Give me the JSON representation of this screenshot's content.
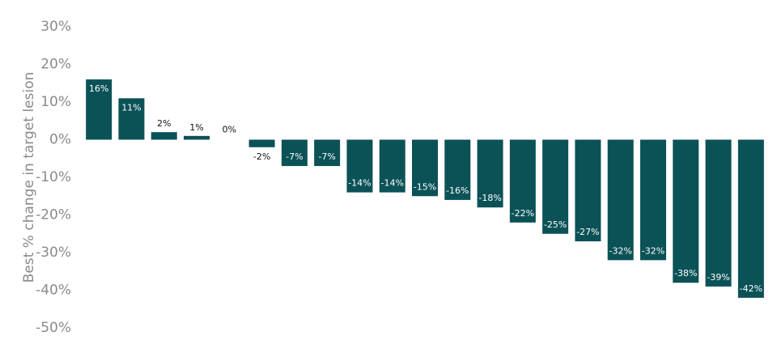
{
  "chart_data": {
    "type": "bar",
    "y_label": "Best % change in target lesion",
    "values": [
      16,
      11,
      2,
      1,
      0,
      -2,
      -7,
      -7,
      -14,
      -14,
      -15,
      -16,
      -18,
      -22,
      -25,
      -27,
      -32,
      -32,
      -38,
      -39,
      -42
    ],
    "value_labels": [
      "16%",
      "11%",
      "2%",
      "1%",
      "0%",
      "-2%",
      "-7%",
      "-7%",
      "-14%",
      "-14%",
      "-15%",
      "-16%",
      "-18%",
      "-22%",
      "-25%",
      "-27%",
      "-32%",
      "-32%",
      "-38%",
      "-39%",
      "-42%"
    ],
    "color": "#0b5257",
    "ylim": [
      -50,
      30
    ],
    "yticks": [
      {
        "value": 30,
        "label": "30%"
      },
      {
        "value": 20,
        "label": "20%"
      },
      {
        "value": 10,
        "label": "10%"
      },
      {
        "value": 0,
        "label": "0%"
      },
      {
        "value": -10,
        "label": "-10%"
      },
      {
        "value": -20,
        "label": "-20%"
      },
      {
        "value": -30,
        "label": "-30%"
      },
      {
        "value": -40,
        "label": "-40%"
      },
      {
        "value": -50,
        "label": "-50%"
      }
    ],
    "grid": false
  }
}
